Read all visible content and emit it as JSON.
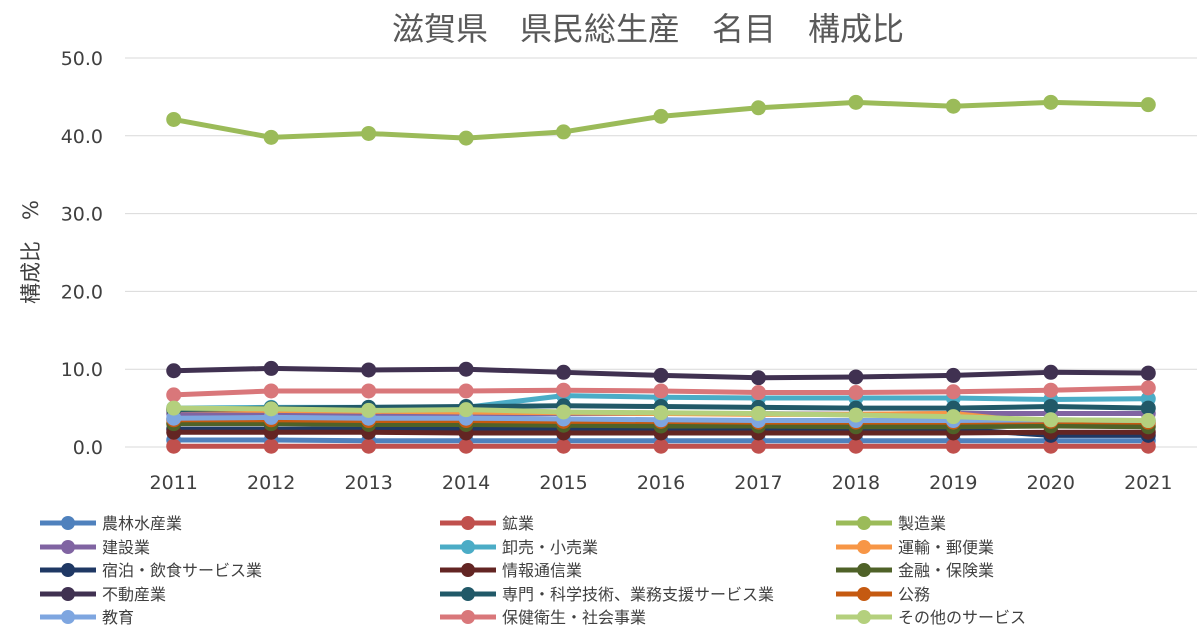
{
  "chart_data": {
    "type": "line",
    "title": "滋賀県　県民総生産　名目　構成比",
    "xlabel": "",
    "ylabel": "構成比　%",
    "ylim": [
      0,
      50
    ],
    "yticks": [
      "0.0",
      "10.0",
      "20.0",
      "30.0",
      "40.0",
      "50.0"
    ],
    "x": [
      "2011",
      "2012",
      "2013",
      "2014",
      "2015",
      "2016",
      "2017",
      "2018",
      "2019",
      "2020",
      "2021"
    ],
    "legend_position": "bottom",
    "series": [
      {
        "name": "農林水産業",
        "color": "#4f81bd",
        "values": [
          0.9,
          0.9,
          0.8,
          0.8,
          0.8,
          0.8,
          0.8,
          0.8,
          0.8,
          0.8,
          0.8
        ]
      },
      {
        "name": "鉱業",
        "color": "#c0504d",
        "values": [
          0.1,
          0.1,
          0.1,
          0.1,
          0.1,
          0.1,
          0.1,
          0.1,
          0.1,
          0.1,
          0.1
        ]
      },
      {
        "name": "製造業",
        "color": "#9bbb59",
        "values": [
          42.1,
          39.8,
          40.3,
          39.7,
          40.5,
          42.5,
          43.6,
          44.3,
          43.8,
          44.3,
          44.0
        ]
      },
      {
        "name": "建設業",
        "color": "#8064a2",
        "values": [
          4.3,
          4.3,
          4.2,
          4.2,
          4.3,
          4.3,
          4.3,
          4.2,
          4.3,
          4.3,
          4.3
        ]
      },
      {
        "name": "卸売・小売業",
        "color": "#4bacc6",
        "values": [
          5.0,
          5.1,
          5.1,
          5.1,
          6.6,
          6.4,
          6.3,
          6.3,
          6.3,
          6.1,
          6.2
        ]
      },
      {
        "name": "運輸・郵便業",
        "color": "#f79646",
        "values": [
          4.8,
          4.7,
          4.6,
          4.5,
          4.4,
          4.3,
          4.2,
          4.2,
          4.3,
          3.0,
          3.0
        ]
      },
      {
        "name": "宿泊・飲食サービス業",
        "color": "#1f3864",
        "values": [
          2.3,
          2.3,
          2.3,
          2.3,
          2.3,
          2.3,
          2.3,
          2.3,
          2.3,
          1.5,
          1.5
        ]
      },
      {
        "name": "情報通信業",
        "color": "#632523",
        "values": [
          1.9,
          1.9,
          1.9,
          1.8,
          1.8,
          1.8,
          1.8,
          1.8,
          1.8,
          1.9,
          1.9
        ]
      },
      {
        "name": "金融・保険業",
        "color": "#4f6228",
        "values": [
          3.0,
          3.0,
          2.9,
          2.9,
          2.8,
          2.7,
          2.7,
          2.6,
          2.6,
          2.7,
          2.6
        ]
      },
      {
        "name": "不動産業",
        "color": "#403151",
        "values": [
          9.8,
          10.1,
          9.9,
          10.0,
          9.6,
          9.2,
          8.9,
          9.0,
          9.2,
          9.6,
          9.5
        ]
      },
      {
        "name": "専門・科学技術、業務支援サービス業",
        "color": "#215968",
        "values": [
          4.8,
          5.0,
          5.1,
          5.2,
          5.3,
          5.2,
          5.1,
          5.0,
          5.0,
          5.2,
          5.0
        ]
      },
      {
        "name": "公務",
        "color": "#c55a11",
        "values": [
          3.5,
          3.5,
          3.4,
          3.4,
          3.3,
          3.3,
          3.2,
          3.2,
          3.2,
          3.3,
          3.2
        ]
      },
      {
        "name": "教育",
        "color": "#7ea6e0",
        "values": [
          3.7,
          3.8,
          3.7,
          3.7,
          3.6,
          3.5,
          3.4,
          3.4,
          3.4,
          3.5,
          3.4
        ]
      },
      {
        "name": "保健衛生・社会事業",
        "color": "#d9777a",
        "values": [
          6.7,
          7.2,
          7.2,
          7.2,
          7.3,
          7.2,
          7.0,
          7.0,
          7.1,
          7.3,
          7.6
        ]
      },
      {
        "name": "その他のサービス",
        "color": "#b4d07d",
        "values": [
          5.0,
          4.9,
          4.7,
          4.8,
          4.5,
          4.4,
          4.3,
          4.1,
          3.9,
          3.5,
          3.4
        ]
      }
    ]
  }
}
